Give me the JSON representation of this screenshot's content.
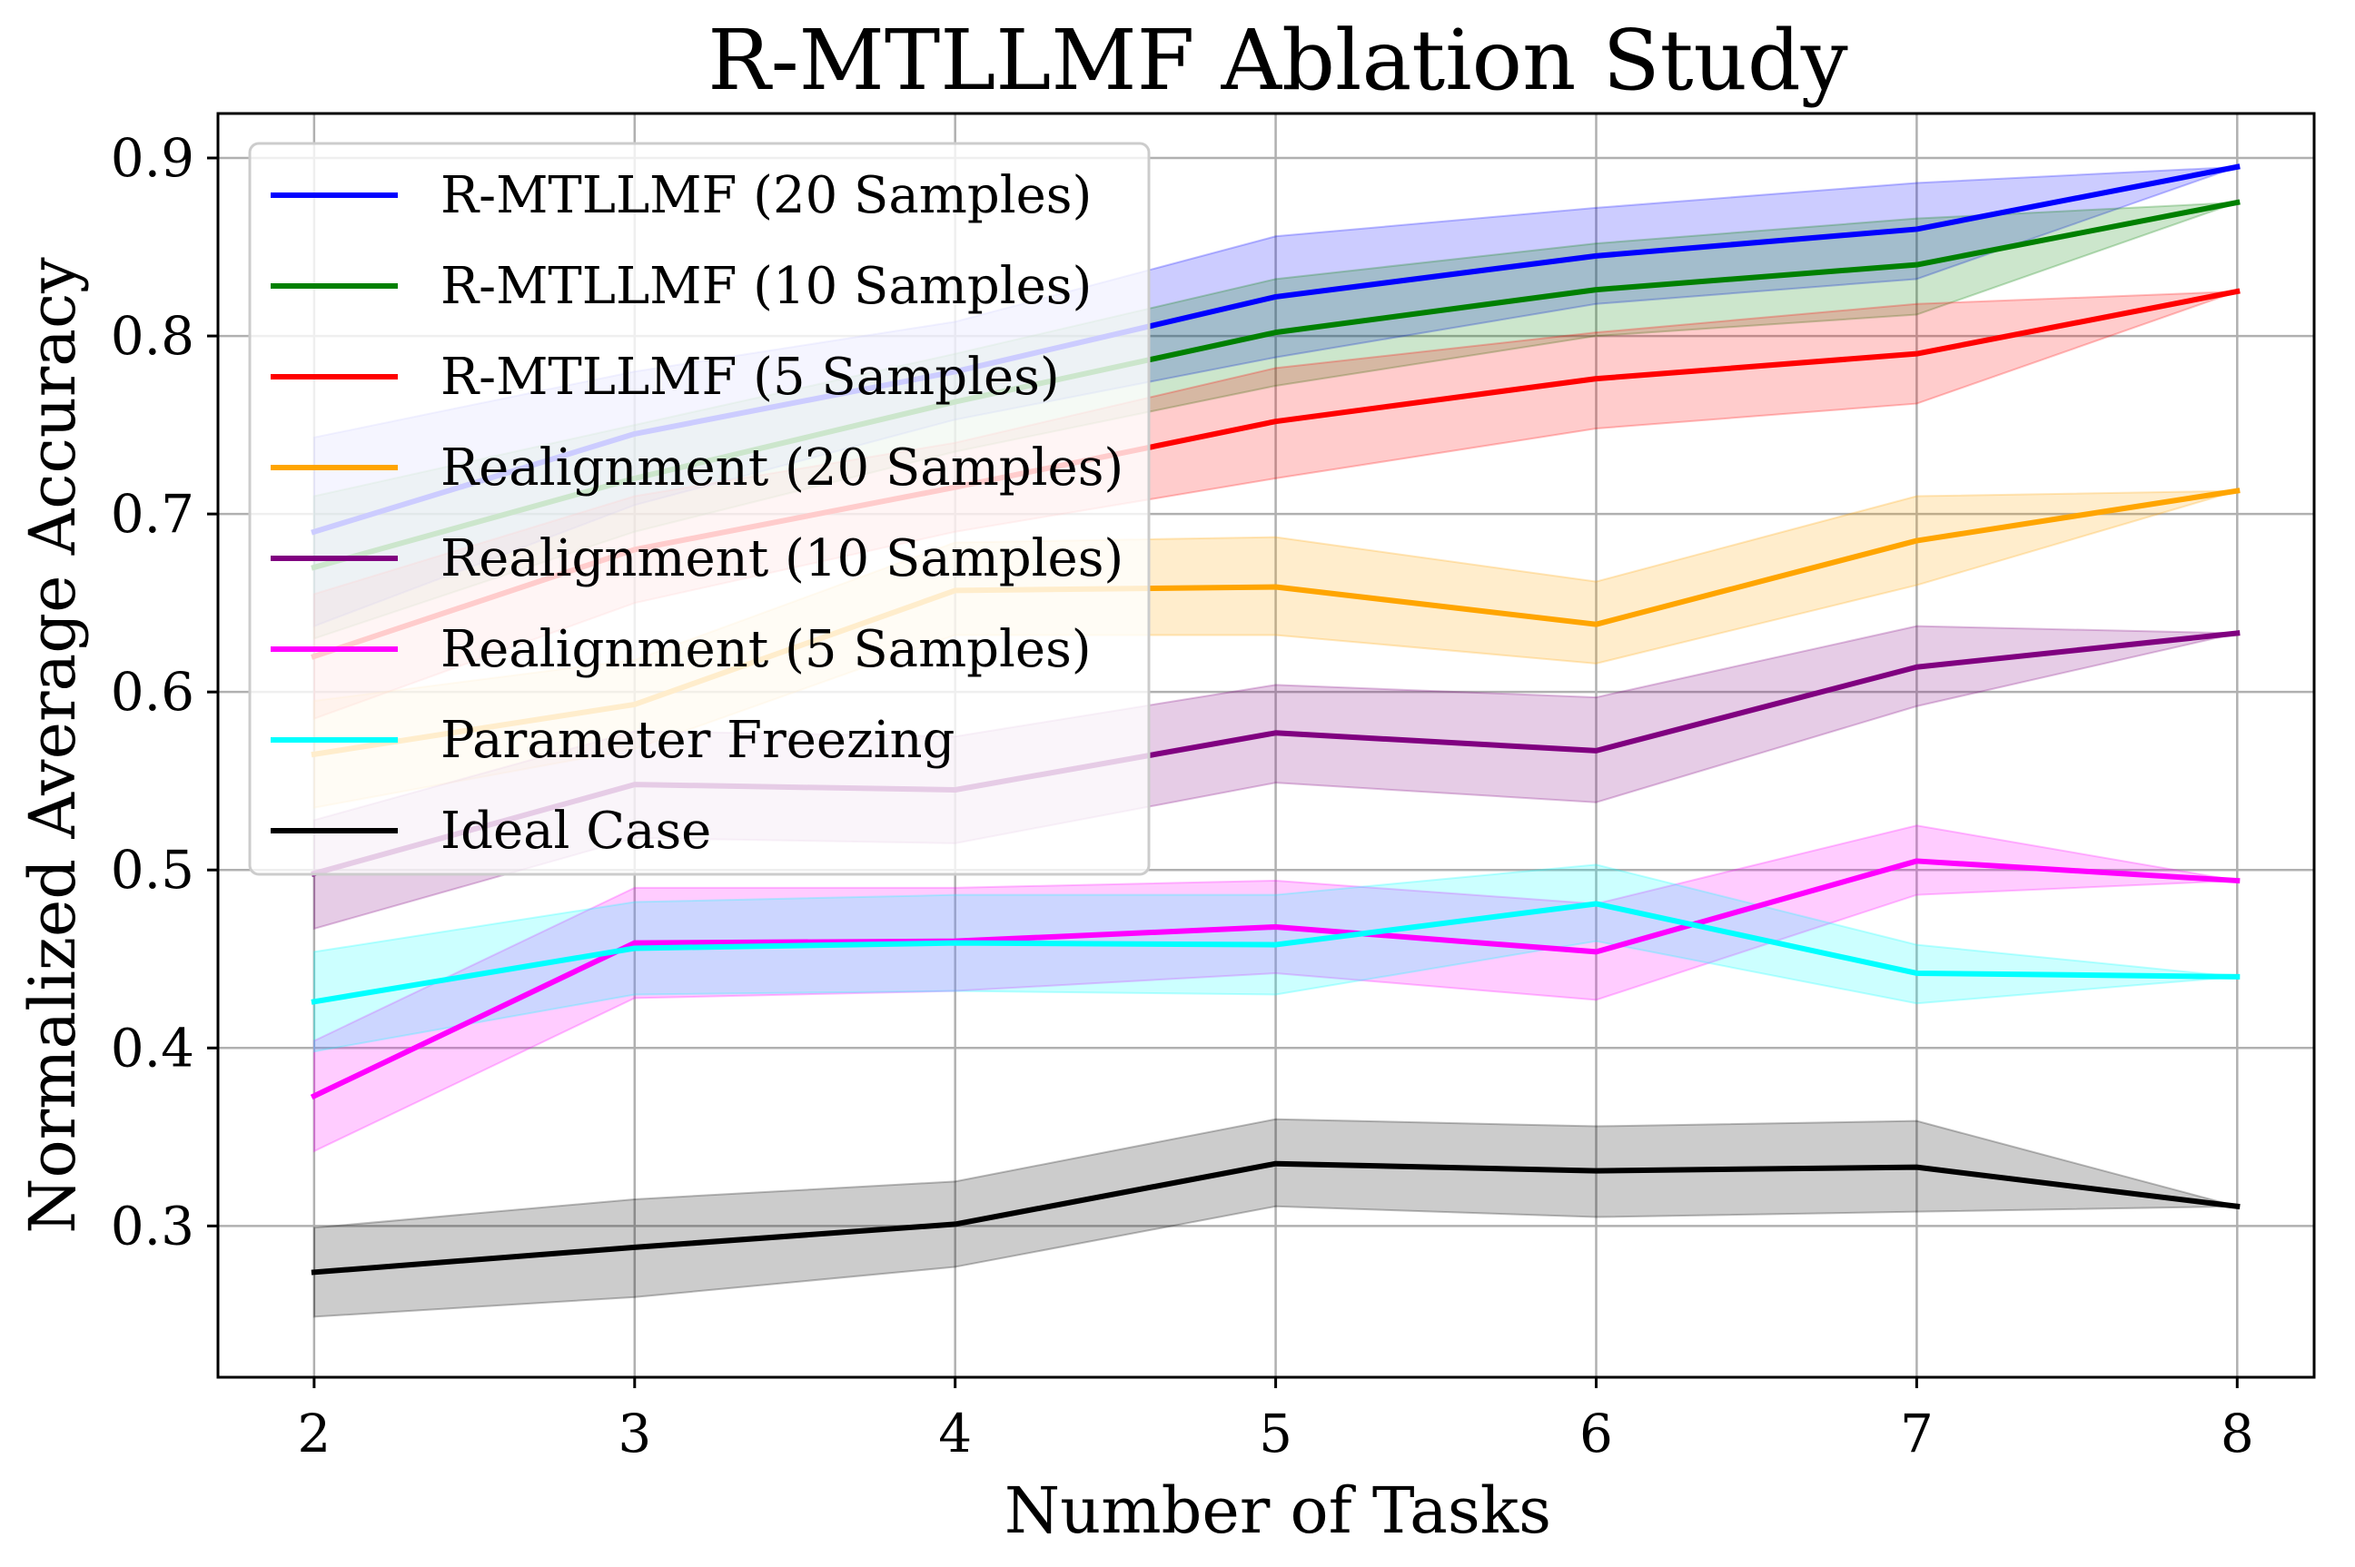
{
  "chart_data": {
    "type": "line",
    "title": "R-MTLLMF Ablation Study",
    "xlabel": "Number of Tasks",
    "ylabel": "Normalized Average Accuracy",
    "x": [
      2,
      3,
      4,
      5,
      6,
      7,
      8
    ],
    "xlim": [
      1.7,
      8.24
    ],
    "ylim": [
      0.215,
      0.925
    ],
    "xticks": [
      2,
      3,
      4,
      5,
      6,
      7,
      8
    ],
    "xtick_labels": [
      "2",
      "3",
      "4",
      "5",
      "6",
      "7",
      "8"
    ],
    "yticks": [
      0.3,
      0.4,
      0.5,
      0.6,
      0.7,
      0.8,
      0.9
    ],
    "ytick_labels": [
      "0.3",
      "0.4",
      "0.5",
      "0.6",
      "0.7",
      "0.8",
      "0.9"
    ],
    "grid": true,
    "legend_position": "upper-left",
    "series": [
      {
        "name": "R-MTLLMF (20 Samples)",
        "color": "#0000ff",
        "values": [
          0.69,
          0.745,
          0.78,
          0.822,
          0.845,
          0.86,
          0.895
        ],
        "lower": [
          0.637,
          0.705,
          0.753,
          0.788,
          0.818,
          0.832,
          0.895
        ],
        "upper": [
          0.743,
          0.78,
          0.808,
          0.856,
          0.872,
          0.886,
          0.895
        ]
      },
      {
        "name": "R-MTLLMF (10 Samples)",
        "color": "#008000",
        "values": [
          0.67,
          0.72,
          0.763,
          0.802,
          0.826,
          0.84,
          0.875
        ],
        "lower": [
          0.63,
          0.69,
          0.735,
          0.772,
          0.8,
          0.812,
          0.875
        ],
        "upper": [
          0.71,
          0.75,
          0.79,
          0.832,
          0.852,
          0.866,
          0.875
        ]
      },
      {
        "name": "R-MTLLMF (5 Samples)",
        "color": "#ff0000",
        "values": [
          0.62,
          0.68,
          0.715,
          0.752,
          0.776,
          0.79,
          0.825
        ],
        "lower": [
          0.585,
          0.65,
          0.69,
          0.72,
          0.748,
          0.762,
          0.825
        ],
        "upper": [
          0.655,
          0.71,
          0.74,
          0.782,
          0.802,
          0.818,
          0.825
        ]
      },
      {
        "name": "Realignment (20 Samples)",
        "color": "#ffa500",
        "values": [
          0.565,
          0.593,
          0.657,
          0.659,
          0.638,
          0.685,
          0.713
        ],
        "lower": [
          0.535,
          0.568,
          0.632,
          0.632,
          0.616,
          0.66,
          0.713
        ],
        "upper": [
          0.595,
          0.618,
          0.684,
          0.687,
          0.662,
          0.71,
          0.713
        ]
      },
      {
        "name": "Realignment (10 Samples)",
        "color": "#800080",
        "values": [
          0.498,
          0.548,
          0.545,
          0.577,
          0.567,
          0.614,
          0.633
        ],
        "lower": [
          0.467,
          0.518,
          0.515,
          0.549,
          0.538,
          0.592,
          0.633
        ],
        "upper": [
          0.528,
          0.578,
          0.575,
          0.604,
          0.597,
          0.637,
          0.633
        ]
      },
      {
        "name": "Realignment (5 Samples)",
        "color": "#ff00ff",
        "values": [
          0.373,
          0.459,
          0.46,
          0.468,
          0.454,
          0.505,
          0.494
        ],
        "lower": [
          0.342,
          0.428,
          0.432,
          0.442,
          0.427,
          0.486,
          0.494
        ],
        "upper": [
          0.404,
          0.49,
          0.49,
          0.494,
          0.481,
          0.525,
          0.494
        ]
      },
      {
        "name": "Parameter Freezing",
        "color": "#00ffff",
        "values": [
          0.426,
          0.456,
          0.459,
          0.458,
          0.481,
          0.442,
          0.44
        ],
        "lower": [
          0.398,
          0.43,
          0.432,
          0.43,
          0.46,
          0.425,
          0.44
        ],
        "upper": [
          0.454,
          0.482,
          0.486,
          0.486,
          0.503,
          0.458,
          0.44
        ]
      },
      {
        "name": "Ideal Case",
        "color": "#000000",
        "values": [
          0.274,
          0.288,
          0.301,
          0.335,
          0.331,
          0.333,
          0.311
        ],
        "lower": [
          0.249,
          0.26,
          0.277,
          0.311,
          0.305,
          0.308,
          0.311
        ],
        "upper": [
          0.299,
          0.315,
          0.325,
          0.36,
          0.356,
          0.359,
          0.311
        ]
      }
    ]
  }
}
